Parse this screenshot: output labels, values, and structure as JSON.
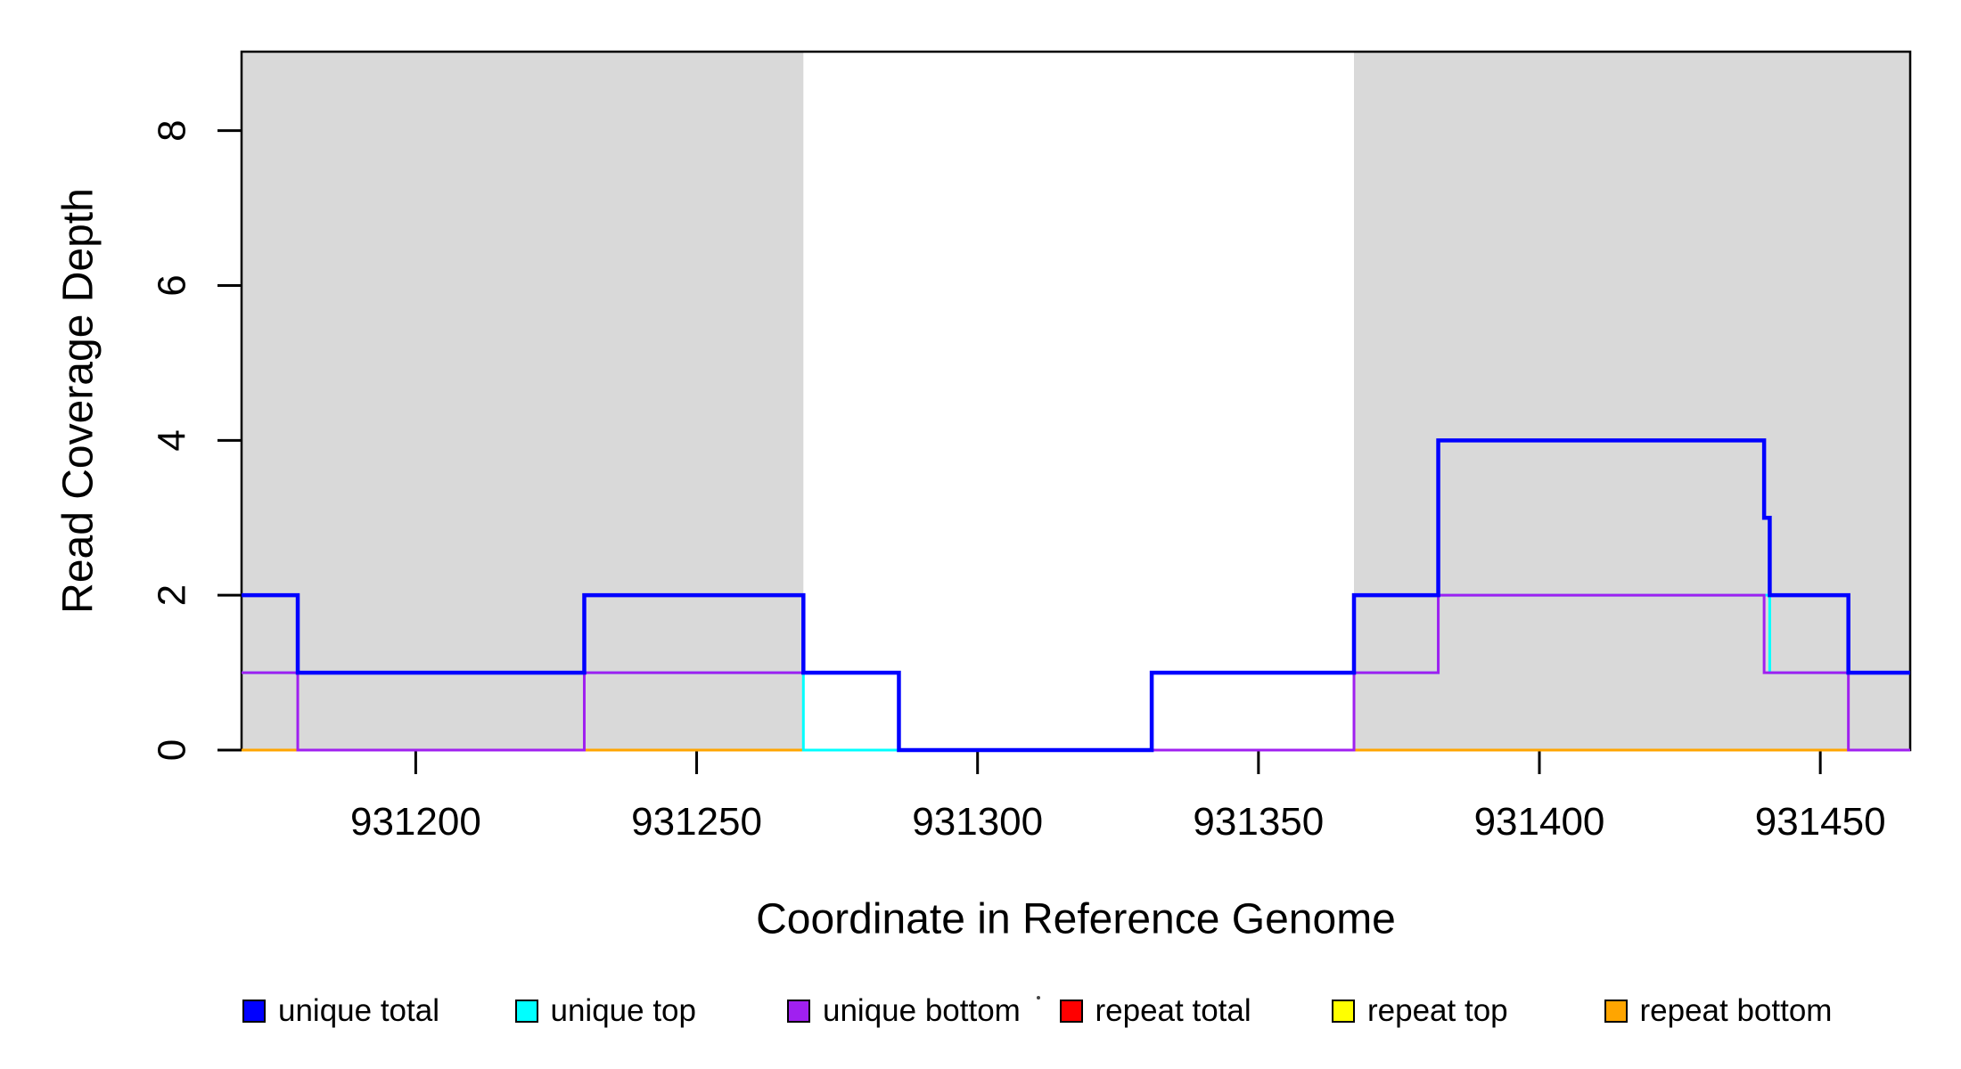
{
  "page": {
    "background": "#ffffff"
  },
  "chart_data": {
    "type": "line",
    "subtype": "step",
    "title": "",
    "xlabel": "Coordinate in Reference Genome",
    "ylabel": "Read Coverage Depth",
    "xlim": [
      931169,
      931466
    ],
    "ylim": [
      0,
      9.02
    ],
    "x_ticks": [
      931200,
      931250,
      931300,
      931350,
      931400,
      931450
    ],
    "y_ticks": [
      0,
      2,
      4,
      6,
      8
    ],
    "grid": false,
    "box": true,
    "background_color": "#ffffff",
    "shaded_region_color": "#d9d9d9",
    "shaded_regions": [
      {
        "x0": 931169,
        "x1": 931269
      },
      {
        "x0": 931367,
        "x1": 931466
      }
    ],
    "series": [
      {
        "name": "repeat total",
        "color": "#ff0000",
        "width": 3,
        "steps": [
          [
            931169,
            0
          ],
          [
            931466,
            0
          ]
        ]
      },
      {
        "name": "repeat top",
        "color": "#ffff00",
        "width": 3,
        "steps": [
          [
            931169,
            0
          ],
          [
            931466,
            0
          ]
        ]
      },
      {
        "name": "repeat bottom",
        "color": "#ffa500",
        "width": 3,
        "steps": [
          [
            931169,
            0
          ],
          [
            931466,
            0
          ]
        ]
      },
      {
        "name": "unique top",
        "color": "#00ffff",
        "width": 3,
        "steps": [
          [
            931169,
            1
          ],
          [
            931269,
            0
          ],
          [
            931331,
            1
          ],
          [
            931382,
            2
          ],
          [
            931441,
            1
          ],
          [
            931466,
            1
          ]
        ]
      },
      {
        "name": "unique bottom",
        "color": "#a020f0",
        "width": 3,
        "steps": [
          [
            931169,
            1
          ],
          [
            931179,
            0
          ],
          [
            931230,
            1
          ],
          [
            931286,
            0
          ],
          [
            931367,
            1
          ],
          [
            931382,
            2
          ],
          [
            931440,
            1
          ],
          [
            931455,
            0
          ],
          [
            931466,
            0
          ]
        ]
      },
      {
        "name": "unique total",
        "color": "#0000ff",
        "width": 4.5,
        "steps": [
          [
            931169,
            2
          ],
          [
            931179,
            1
          ],
          [
            931230,
            2
          ],
          [
            931269,
            1
          ],
          [
            931286,
            0
          ],
          [
            931331,
            1
          ],
          [
            931367,
            2
          ],
          [
            931382,
            4
          ],
          [
            931440,
            3
          ],
          [
            931441,
            2
          ],
          [
            931455,
            1
          ],
          [
            931466,
            1
          ]
        ]
      }
    ],
    "legend": {
      "position": "bottom",
      "items": [
        {
          "label": "unique total",
          "color": "#0000ff"
        },
        {
          "label": "unique top",
          "color": "#00ffff"
        },
        {
          "label": "unique bottom",
          "color": "#a020f0"
        },
        {
          "label": "repeat total",
          "color": "#ff0000"
        },
        {
          "label": "repeat top",
          "color": "#ffff00"
        },
        {
          "label": "repeat bottom",
          "color": "#ffa500"
        }
      ]
    }
  }
}
